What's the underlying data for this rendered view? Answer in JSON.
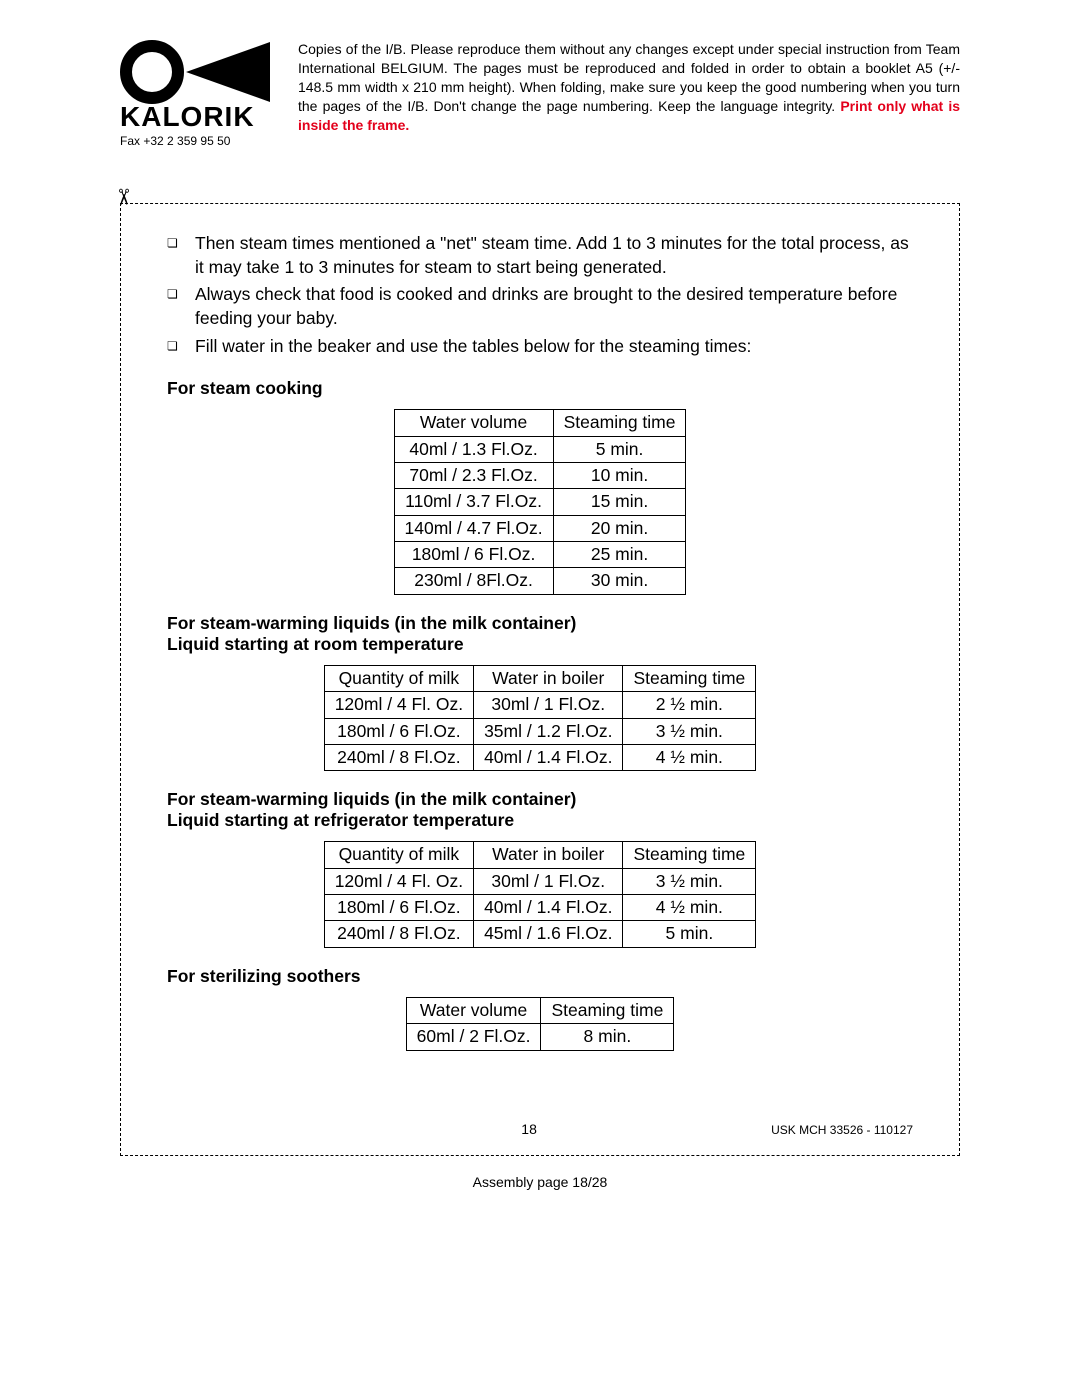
{
  "header": {
    "logo": {
      "brand_text": "KALORIK",
      "fax_label": "Fax +32 2 359 95 50",
      "ring_stroke": "#000000",
      "triangle_fill": "#000000"
    },
    "disclaimer": {
      "body": "Copies of the I/B. Please reproduce them without any changes except under special instruction from Team International BELGIUM. The pages must be reproduced and folded in order to obtain a booklet A5 (+/- 148.5 mm width x 210 mm height). When folding, make sure you keep the good numbering when you turn the pages of the I/B. Don't change the page numbering. Keep the language integrity. ",
      "highlight": "Print only what is inside the frame."
    }
  },
  "scissor_glyph": "✂",
  "content": {
    "bullets": [
      "Then steam times mentioned a \"net\" steam time. Add 1 to 3 minutes for the total process, as it may take 1 to 3 minutes for steam to start being generated.",
      "Always check that food is cooked and drinks are brought to the desired temperature before feeding your baby.",
      "Fill water in the beaker and use the tables below for the steaming times:"
    ],
    "sections": [
      {
        "title": "For steam cooking",
        "table": {
          "columns": [
            "Water volume",
            "Steaming time"
          ],
          "rows": [
            [
              "40ml / 1.3 Fl.Oz.",
              "5 min."
            ],
            [
              "70ml / 2.3 Fl.Oz.",
              "10 min."
            ],
            [
              "110ml / 3.7 Fl.Oz.",
              "15 min."
            ],
            [
              "140ml / 4.7 Fl.Oz.",
              "20 min."
            ],
            [
              "180ml / 6 Fl.Oz.",
              "25 min."
            ],
            [
              "230ml / 8Fl.Oz.",
              "30 min."
            ]
          ]
        }
      },
      {
        "title": "For steam-warming liquids (in the milk container)\nLiquid starting at room temperature",
        "table": {
          "columns": [
            "Quantity of milk",
            "Water in boiler",
            "Steaming time"
          ],
          "rows": [
            [
              "120ml / 4 Fl. Oz.",
              "30ml / 1 Fl.Oz.",
              "2 ½ min."
            ],
            [
              "180ml / 6 Fl.Oz.",
              "35ml / 1.2 Fl.Oz.",
              "3 ½ min."
            ],
            [
              "240ml / 8 Fl.Oz.",
              "40ml / 1.4 Fl.Oz.",
              "4 ½  min."
            ]
          ]
        }
      },
      {
        "title": "For steam-warming liquids (in the milk container)\nLiquid starting at refrigerator temperature",
        "table": {
          "columns": [
            "Quantity of milk",
            "Water in boiler",
            "Steaming time"
          ],
          "rows": [
            [
              "120ml / 4 Fl. Oz.",
              "30ml / 1 Fl.Oz.",
              "3 ½ min."
            ],
            [
              "180ml / 6 Fl.Oz.",
              "40ml / 1.4 Fl.Oz.",
              "4 ½ min."
            ],
            [
              "240ml / 8 Fl.Oz.",
              "45ml / 1.6 Fl.Oz.",
              "5  min."
            ]
          ]
        }
      },
      {
        "title": "For sterilizing soothers",
        "table": {
          "columns": [
            "Water volume",
            "Steaming time"
          ],
          "rows": [
            [
              "60ml / 2 Fl.Oz.",
              "8 min."
            ]
          ]
        }
      }
    ],
    "page_number": "18",
    "reference": "USK MCH 33526 - 110127"
  },
  "assembly_footer": "Assembly page 18/28",
  "colors": {
    "text": "#000000",
    "highlight": "#e3001b",
    "background": "#ffffff",
    "border": "#000000"
  },
  "typography": {
    "body_fontsize_pt": 13,
    "table_fontsize_pt": 13,
    "header_fontsize_pt": 10,
    "font_family": "Century Gothic"
  }
}
